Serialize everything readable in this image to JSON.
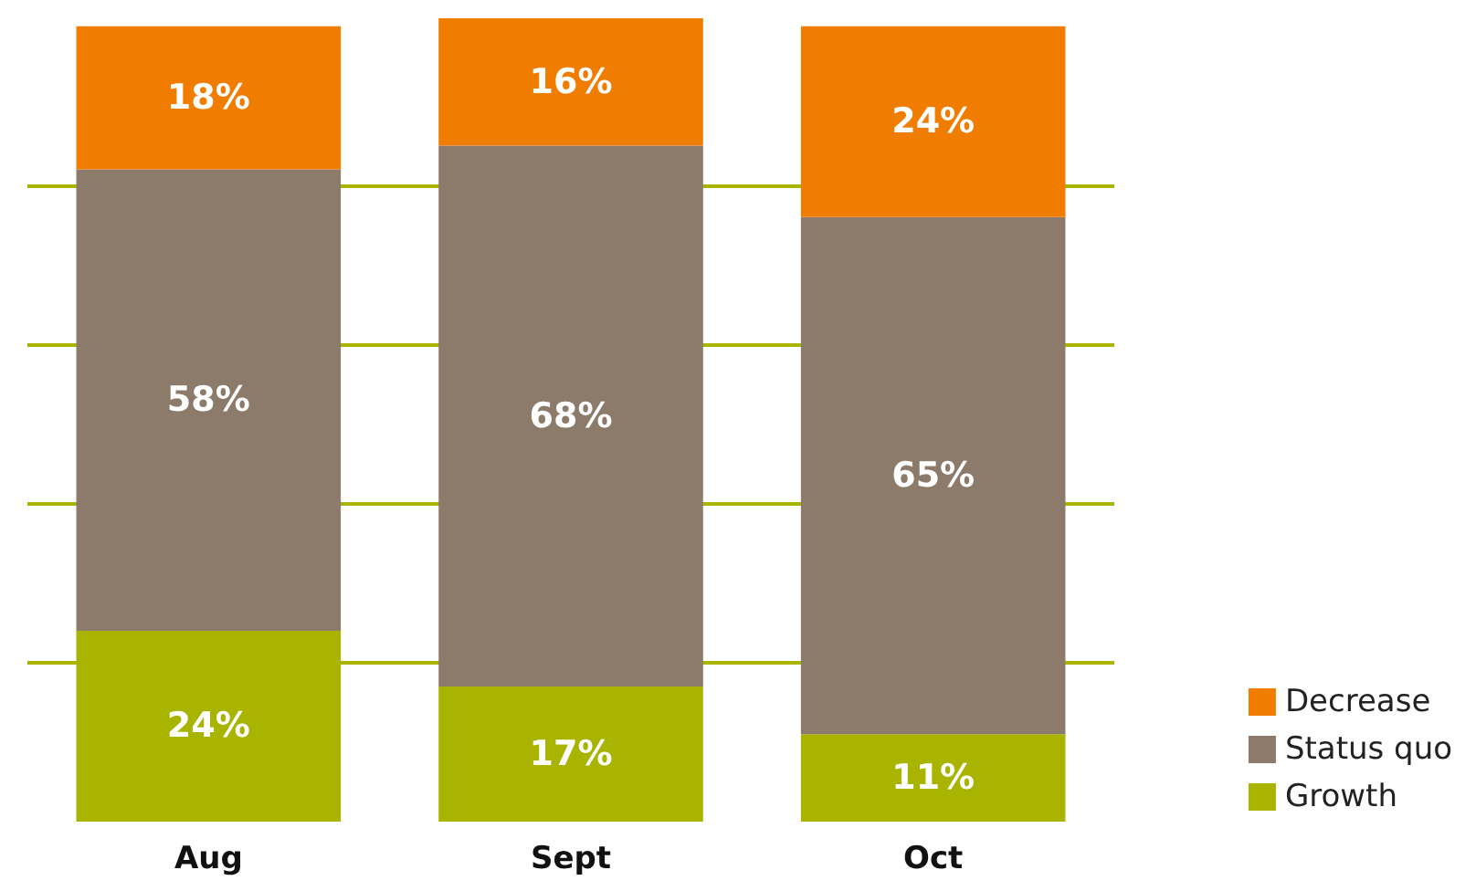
{
  "chart_data": {
    "type": "bar",
    "stacked": true,
    "categories": [
      "Aug",
      "Sept",
      "Oct"
    ],
    "series": [
      {
        "name": "Growth",
        "color": "#a8b400",
        "values": [
          24,
          17,
          11
        ],
        "value_labels": [
          "24%",
          "17%",
          "11%"
        ]
      },
      {
        "name": "Status quo",
        "color": "#8c7b6b",
        "values": [
          58,
          68,
          65
        ],
        "value_labels": [
          "58%",
          "68%",
          "65%"
        ]
      },
      {
        "name": "Decrease",
        "color": "#f07d00",
        "values": [
          18,
          16,
          24
        ],
        "value_labels": [
          "18%",
          "16%",
          "24%"
        ]
      }
    ],
    "ylim": [
      0,
      101
    ],
    "yticks": [
      {
        "value": 20,
        "label": null
      },
      {
        "value": 40,
        "label": null
      },
      {
        "value": 60,
        "label": null
      },
      {
        "value": 80,
        "label": null
      }
    ],
    "grid": "y",
    "tick_labels": "x",
    "legend": "bottom right"
  }
}
